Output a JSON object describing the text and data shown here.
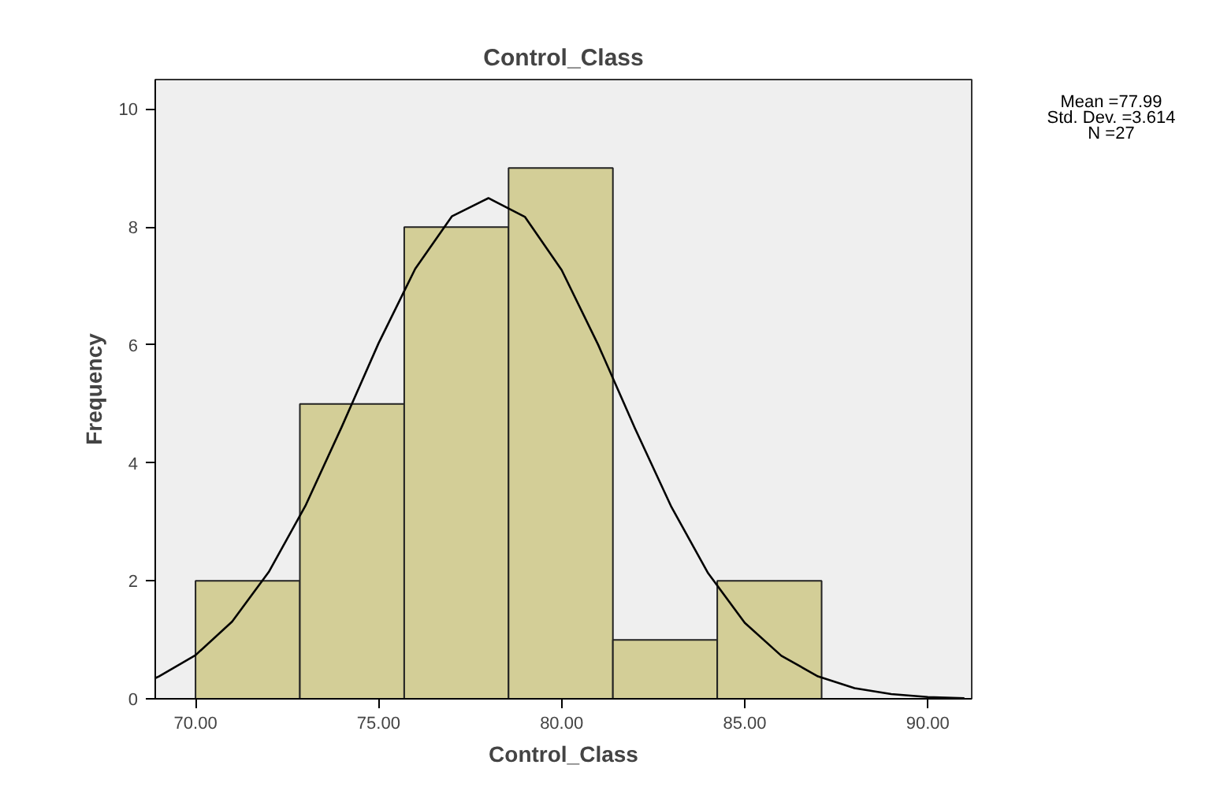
{
  "chart_data": {
    "type": "histogram",
    "title": "Control_Class",
    "xlabel": "Control_Class",
    "ylabel": "Frequency",
    "annotations": [
      "Mean =77.99",
      "Std. Dev. =3.614",
      "N =27"
    ],
    "bins": [
      70.0,
      72.85,
      75.7,
      78.55,
      81.4,
      84.25,
      87.1
    ],
    "values": [
      2,
      5,
      8,
      9,
      1,
      2
    ],
    "color": "#d3ce97",
    "series": [
      {
        "type": "line",
        "color": "#000000",
        "x": [
          68.9,
          69,
          70,
          71,
          72,
          73,
          74,
          75,
          76,
          77,
          78,
          79,
          80,
          81,
          82,
          83,
          84,
          85,
          86,
          87,
          88,
          89,
          90,
          91
        ],
        "values": [
          0.35,
          0.38,
          0.74,
          1.31,
          2.15,
          3.27,
          4.62,
          6.03,
          7.29,
          8.18,
          8.49,
          8.17,
          7.27,
          6.0,
          4.59,
          3.25,
          2.13,
          1.29,
          0.73,
          0.38,
          0.18,
          0.08,
          0.03,
          0.01
        ]
      }
    ],
    "xlim": [
      68.9,
      91.2
    ],
    "ylim": [
      0,
      10.5
    ],
    "xticks": [
      {
        "value": 70,
        "label": "70.00"
      },
      {
        "value": 75,
        "label": "75.00"
      },
      {
        "value": 80,
        "label": "80.00"
      },
      {
        "value": 85,
        "label": "85.00"
      },
      {
        "value": 90,
        "label": "90.00"
      }
    ],
    "yticks": [
      0,
      2,
      4,
      6,
      8,
      10
    ],
    "grid": false
  }
}
